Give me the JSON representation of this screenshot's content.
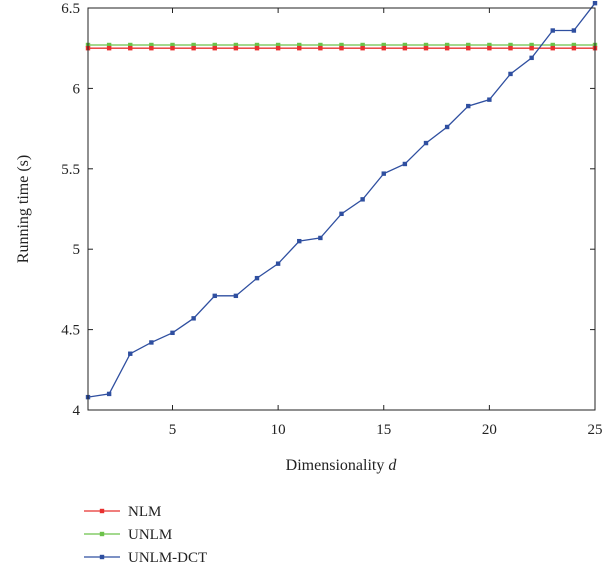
{
  "chart_data": {
    "type": "line",
    "xlabel": "Dimensionality",
    "xlabel_var": "d",
    "ylabel": "Running time (s)",
    "xlim": [
      1,
      25
    ],
    "ylim": [
      4,
      6.5
    ],
    "xticks": [
      5,
      10,
      15,
      20,
      25
    ],
    "yticks": [
      4,
      4.5,
      5,
      5.5,
      6,
      6.5
    ],
    "xtick_labels": [
      "5",
      "10",
      "15",
      "20",
      "25"
    ],
    "ytick_labels": [
      "4",
      "4.5",
      "5",
      "5.5",
      "6",
      "6.5"
    ],
    "grid": false,
    "legend_position": "below",
    "x": [
      1,
      2,
      3,
      4,
      5,
      6,
      7,
      8,
      9,
      10,
      11,
      12,
      13,
      14,
      15,
      16,
      17,
      18,
      19,
      20,
      21,
      22,
      23,
      24,
      25
    ],
    "series": [
      {
        "name": "NLM",
        "color": "#e8302f",
        "values": [
          6.25,
          6.25,
          6.25,
          6.25,
          6.25,
          6.25,
          6.25,
          6.25,
          6.25,
          6.25,
          6.25,
          6.25,
          6.25,
          6.25,
          6.25,
          6.25,
          6.25,
          6.25,
          6.25,
          6.25,
          6.25,
          6.25,
          6.25,
          6.25,
          6.25
        ]
      },
      {
        "name": "UNLM",
        "color": "#6cc24a",
        "values": [
          6.27,
          6.27,
          6.27,
          6.27,
          6.27,
          6.27,
          6.27,
          6.27,
          6.27,
          6.27,
          6.27,
          6.27,
          6.27,
          6.27,
          6.27,
          6.27,
          6.27,
          6.27,
          6.27,
          6.27,
          6.27,
          6.27,
          6.27,
          6.27,
          6.27
        ]
      },
      {
        "name": "UNLM-DCT",
        "color": "#2f4fa0",
        "values": [
          4.08,
          4.1,
          4.35,
          4.42,
          4.48,
          4.57,
          4.71,
          4.71,
          4.82,
          4.91,
          5.05,
          5.07,
          5.22,
          5.31,
          5.47,
          5.53,
          5.66,
          5.76,
          5.89,
          5.93,
          6.09,
          6.19,
          6.36,
          6.36,
          6.53
        ]
      }
    ]
  }
}
